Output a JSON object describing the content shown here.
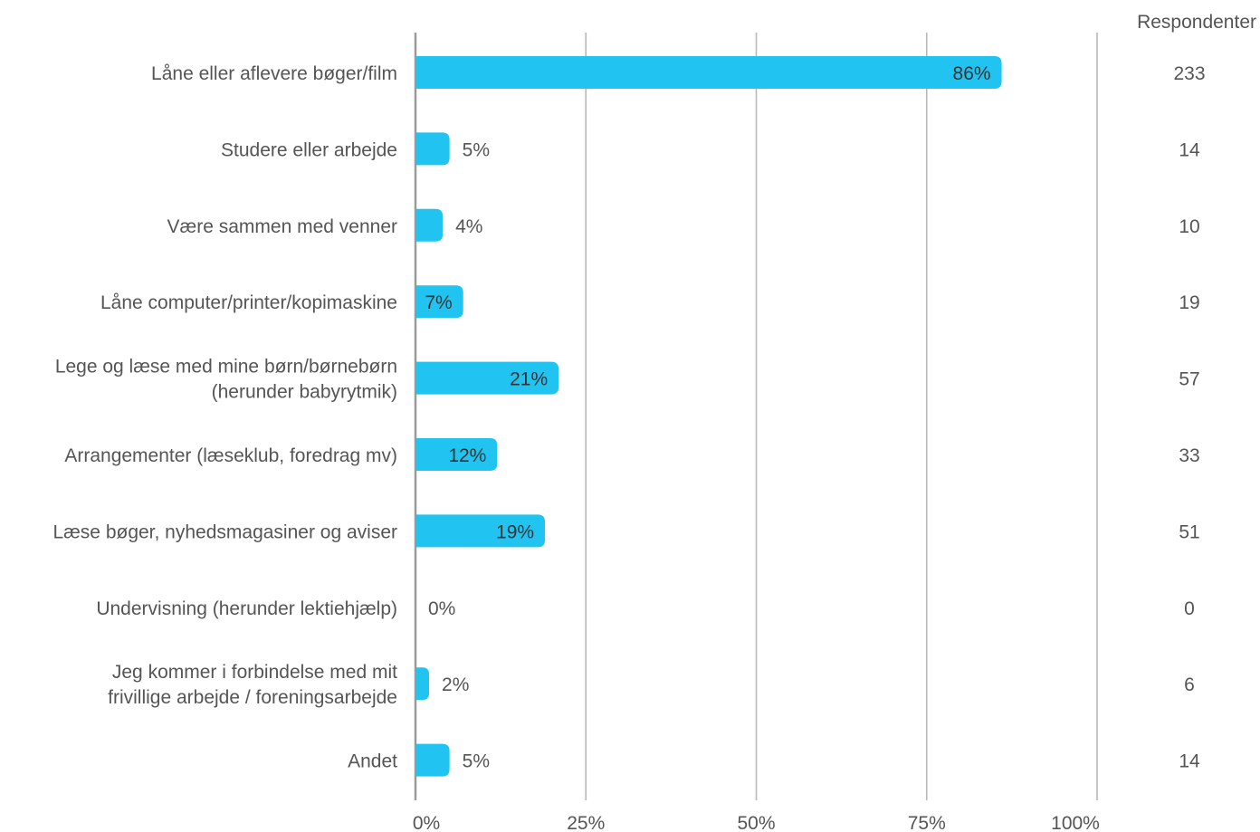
{
  "chart_data": {
    "type": "bar",
    "orientation": "horizontal",
    "categories": [
      [
        "Låne eller aflevere bøger/film"
      ],
      [
        "Studere eller arbejde"
      ],
      [
        "Være sammen med venner"
      ],
      [
        "Låne computer/printer/kopimaskine"
      ],
      [
        "Lege og læse med mine børn/børnebørn",
        "(herunder babyrytmik)"
      ],
      [
        "Arrangementer (læseklub, foredrag mv)"
      ],
      [
        "Læse bøger, nyhedsmagasiner og aviser"
      ],
      [
        "Undervisning (herunder lektiehjælp)"
      ],
      [
        "Jeg kommer i forbindelse med mit",
        "frivillige arbejde / foreningsarbejde"
      ],
      [
        "Andet"
      ]
    ],
    "values": [
      86,
      5,
      4,
      7,
      21,
      12,
      19,
      0,
      2,
      5
    ],
    "value_labels": [
      "86%",
      "5%",
      "4%",
      "7%",
      "21%",
      "12%",
      "19%",
      "0%",
      "2%",
      "5%"
    ],
    "respondents_header": "Respondenter",
    "respondents": [
      "233",
      "14",
      "10",
      "19",
      "57",
      "33",
      "51",
      "0",
      "6",
      "14"
    ],
    "xlim": [
      0,
      100
    ],
    "x_ticks": [
      0,
      25,
      50,
      75,
      100
    ],
    "x_tick_labels": [
      "0%",
      "25%",
      "50%",
      "75%",
      "100%"
    ],
    "grid": true,
    "colors": {
      "bar": "#21c3f1",
      "grid": "#b8b8b8",
      "axis": "#9a9a9a",
      "text": "#555555",
      "label_inside": "#333333"
    }
  }
}
